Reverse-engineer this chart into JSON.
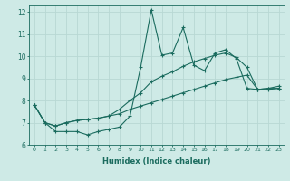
{
  "xlabel": "Humidex (Indice chaleur)",
  "ylabel": "",
  "bg_color": "#ceeae6",
  "line_color": "#1a6b5e",
  "grid_color": "#b8d8d4",
  "xlim": [
    -0.5,
    23.5
  ],
  "ylim": [
    6,
    12.3
  ],
  "yticks": [
    6,
    7,
    8,
    9,
    10,
    11,
    12
  ],
  "xticks": [
    0,
    1,
    2,
    3,
    4,
    5,
    6,
    7,
    8,
    9,
    10,
    11,
    12,
    13,
    14,
    15,
    16,
    17,
    18,
    19,
    20,
    21,
    22,
    23
  ],
  "series1_x": [
    0,
    1,
    2,
    3,
    4,
    5,
    6,
    7,
    8,
    9,
    10,
    11,
    12,
    13,
    14,
    15,
    16,
    17,
    18,
    19,
    20,
    21,
    22,
    23
  ],
  "series1_y": [
    7.8,
    7.0,
    6.6,
    6.6,
    6.6,
    6.45,
    6.6,
    6.7,
    6.8,
    7.3,
    9.5,
    12.1,
    10.05,
    10.15,
    11.3,
    9.6,
    9.35,
    10.15,
    10.3,
    9.9,
    8.55,
    8.5,
    8.55,
    8.55
  ],
  "series2_x": [
    0,
    1,
    2,
    3,
    4,
    5,
    6,
    7,
    8,
    9,
    10,
    11,
    12,
    13,
    14,
    15,
    16,
    17,
    18,
    19,
    20,
    21,
    22,
    23
  ],
  "series2_y": [
    7.8,
    7.0,
    6.85,
    7.0,
    7.1,
    7.15,
    7.2,
    7.3,
    7.6,
    8.0,
    8.35,
    8.85,
    9.1,
    9.3,
    9.55,
    9.75,
    9.9,
    10.05,
    10.15,
    9.95,
    9.5,
    8.5,
    8.5,
    8.55
  ],
  "series3_x": [
    0,
    1,
    2,
    3,
    4,
    5,
    6,
    7,
    8,
    9,
    10,
    11,
    12,
    13,
    14,
    15,
    16,
    17,
    18,
    19,
    20,
    21,
    22,
    23
  ],
  "series3_y": [
    7.8,
    7.0,
    6.85,
    7.0,
    7.1,
    7.15,
    7.2,
    7.3,
    7.4,
    7.6,
    7.75,
    7.9,
    8.05,
    8.2,
    8.35,
    8.5,
    8.65,
    8.8,
    8.95,
    9.05,
    9.15,
    8.5,
    8.55,
    8.65
  ]
}
